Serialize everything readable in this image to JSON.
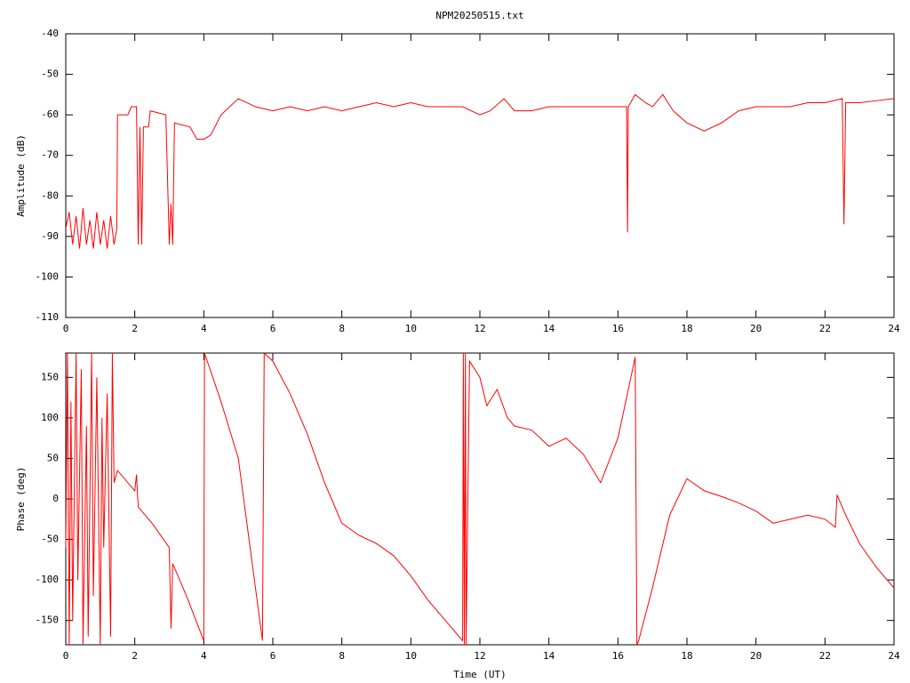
{
  "chart_data": [
    {
      "type": "line",
      "title": "NPM20250515.txt",
      "ylabel": "Amplitude (dB)",
      "color": "#ff0000",
      "xlim": [
        0,
        24
      ],
      "xticks": [
        0,
        2,
        4,
        6,
        8,
        10,
        12,
        14,
        16,
        18,
        20,
        22,
        24
      ],
      "ylim": [
        -110,
        -40
      ],
      "yticks": [
        -40,
        -50,
        -60,
        -70,
        -80,
        -90,
        -100,
        -110
      ],
      "x": [
        0,
        0.1,
        0.2,
        0.3,
        0.4,
        0.5,
        0.6,
        0.7,
        0.8,
        0.9,
        1.0,
        1.1,
        1.2,
        1.3,
        1.4,
        1.48,
        1.5,
        1.8,
        1.9,
        2.05,
        2.1,
        2.15,
        2.2,
        2.25,
        2.4,
        2.45,
        2.9,
        3.0,
        3.05,
        3.1,
        3.15,
        3.6,
        3.8,
        4.0,
        4.2,
        4.5,
        5.0,
        5.5,
        6.0,
        6.5,
        7.0,
        7.5,
        8.0,
        8.5,
        9.0,
        9.5,
        10,
        10.5,
        11,
        11.5,
        12,
        12.3,
        12.7,
        13,
        13.5,
        14,
        14.5,
        15,
        15.5,
        16,
        16.25,
        16.28,
        16.3,
        16.5,
        16.8,
        17,
        17.3,
        17.6,
        18,
        18.5,
        19,
        19.5,
        20,
        20.5,
        21,
        21.5,
        22,
        22.5,
        22.55,
        22.6,
        23,
        23.5,
        24
      ],
      "values": [
        -88,
        -84,
        -92,
        -85,
        -93,
        -83,
        -92,
        -86,
        -93,
        -84,
        -92,
        -86,
        -93,
        -85,
        -92,
        -88,
        -60,
        -60,
        -58,
        -58,
        -92,
        -63,
        -92,
        -63,
        -63,
        -59,
        -60,
        -92,
        -82,
        -92,
        -62,
        -63,
        -66,
        -66,
        -65,
        -60,
        -56,
        -58,
        -59,
        -58,
        -59,
        -58,
        -59,
        -58,
        -57,
        -58,
        -57,
        -58,
        -58,
        -58,
        -60,
        -59,
        -56,
        -59,
        -59,
        -58,
        -58,
        -58,
        -58,
        -58,
        -58,
        -89,
        -58,
        -55,
        -57,
        -58,
        -55,
        -59,
        -62,
        -64,
        -62,
        -59,
        -58,
        -58,
        -58,
        -57,
        -57,
        -56,
        -87,
        -57,
        -57,
        -56.5,
        -56
      ]
    },
    {
      "type": "line",
      "xlabel": "Time (UT)",
      "ylabel": "Phase (deg)",
      "color": "#ff0000",
      "xlim": [
        0,
        24
      ],
      "xticks": [
        0,
        2,
        4,
        6,
        8,
        10,
        12,
        14,
        16,
        18,
        20,
        22,
        24
      ],
      "ylim": [
        -180,
        180
      ],
      "yticks": [
        150,
        100,
        50,
        0,
        -50,
        -100,
        -150
      ],
      "x": [
        0,
        0.05,
        0.1,
        0.15,
        0.2,
        0.3,
        0.35,
        0.45,
        0.5,
        0.6,
        0.65,
        0.75,
        0.8,
        0.9,
        1.0,
        1.05,
        1.1,
        1.2,
        1.3,
        1.35,
        1.4,
        1.5,
        2,
        2.05,
        2.1,
        2.5,
        3,
        3.05,
        3.1,
        3.5,
        4,
        4.02,
        4.5,
        5,
        5.7,
        5.75,
        6,
        6.5,
        7,
        7.5,
        8,
        8.5,
        9,
        9.5,
        10,
        10.5,
        11,
        11.5,
        11.52,
        11.55,
        11.58,
        11.6,
        11.7,
        12,
        12.2,
        12.5,
        12.8,
        13,
        13.5,
        14,
        14.5,
        15,
        15.5,
        16,
        16.5,
        16.55,
        16.6,
        17,
        17.5,
        18,
        18.5,
        19,
        19.5,
        20,
        20.5,
        21,
        21.5,
        22,
        22.3,
        22.35,
        22.6,
        23,
        23.5,
        24
      ],
      "values": [
        -60,
        180,
        -180,
        120,
        -150,
        180,
        -100,
        160,
        -180,
        90,
        -170,
        180,
        -120,
        150,
        -180,
        100,
        -60,
        130,
        -170,
        180,
        20,
        35,
        10,
        30,
        -10,
        -30,
        -60,
        -160,
        -80,
        -120,
        -175,
        180,
        120,
        50,
        -175,
        180,
        170,
        130,
        80,
        20,
        -30,
        -45,
        -55,
        -70,
        -95,
        -125,
        -150,
        -175,
        180,
        -180,
        180,
        -180,
        170,
        150,
        115,
        135,
        100,
        90,
        85,
        65,
        75,
        55,
        20,
        75,
        175,
        -180,
        -175,
        -110,
        -20,
        25,
        10,
        3,
        -5,
        -15,
        -30,
        -25,
        -20,
        -25,
        -35,
        5,
        -20,
        -55,
        -85,
        -110
      ]
    }
  ]
}
